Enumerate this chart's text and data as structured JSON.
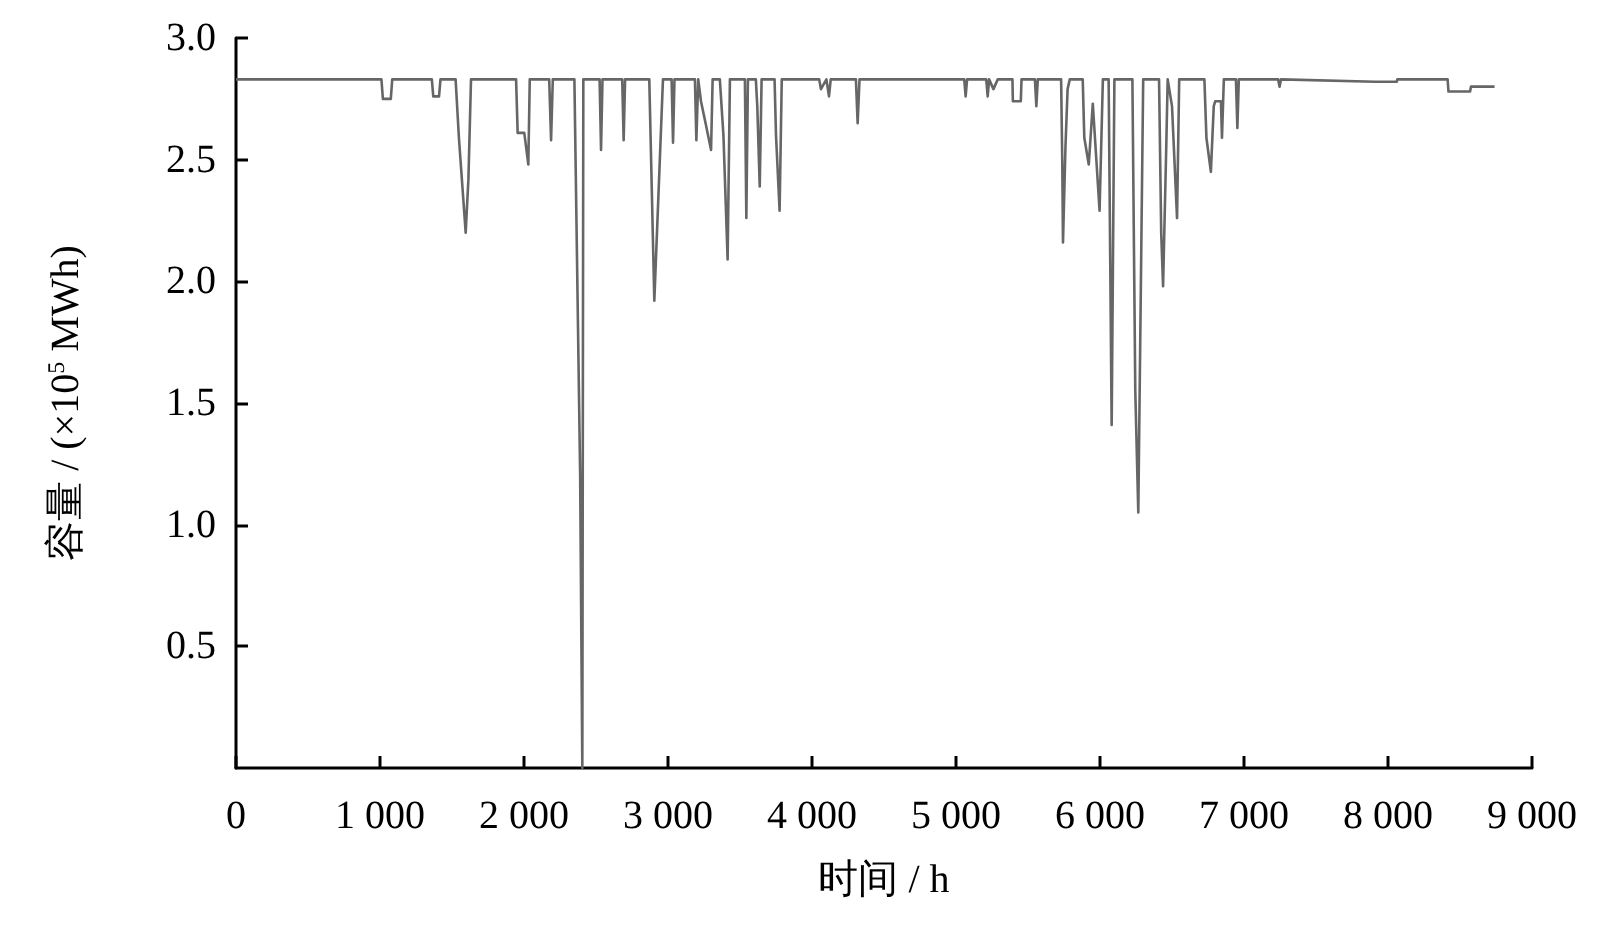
{
  "chart_data": {
    "type": "line",
    "xlabel": "时间 / h",
    "ylabel": "容量 / (×10$^{5}$ MWh)",
    "xlim": [
      0,
      9000
    ],
    "ylim": [
      0,
      3.0
    ],
    "xticks": [
      0,
      {
        "value": 1000,
        "label": "1 000"
      },
      {
        "value": 2000,
        "label": "2 000"
      },
      {
        "value": 3000,
        "label": "3 000"
      },
      {
        "value": 4000,
        "label": "4 000"
      },
      {
        "value": 5000,
        "label": "5 000"
      },
      {
        "value": 6000,
        "label": "6 000"
      },
      {
        "value": 7000,
        "label": "7 000"
      },
      {
        "value": 8000,
        "label": "8 000"
      },
      {
        "value": 9000,
        "label": "9 000"
      }
    ],
    "yticks": [
      {
        "value": 0.5,
        "label": "0.5"
      },
      {
        "value": 1.0,
        "label": "1.0"
      },
      {
        "value": 1.5,
        "label": "1.5"
      },
      {
        "value": 2.0,
        "label": "2.0"
      },
      {
        "value": 2.5,
        "label": "2.5"
      },
      {
        "value": 3.0,
        "label": "3.0"
      }
    ],
    "grid": false,
    "marker": "none",
    "line_style": "solid",
    "series": [
      {
        "color": "#666666",
        "x": [
          0,
          1010,
          1020,
          1075,
          1085,
          1360,
          1370,
          1410,
          1420,
          1525,
          1548,
          1595,
          1614,
          1632,
          1945,
          1956,
          2002,
          2030,
          2040,
          2175,
          2188,
          2200,
          2350,
          2390,
          2405,
          2412,
          2525,
          2535,
          2545,
          2682,
          2692,
          2702,
          2870,
          2905,
          2965,
          3025,
          3035,
          3045,
          3187,
          3197,
          3210,
          3229,
          3261,
          3299,
          3310,
          3360,
          3385,
          3414,
          3430,
          3534,
          3544,
          3555,
          3610,
          3620,
          3637,
          3650,
          3740,
          3750,
          3775,
          3790,
          4050,
          4062,
          4100,
          4118,
          4130,
          4305,
          4317,
          4330,
          5057,
          5067,
          5077,
          5210,
          5220,
          5230,
          5260,
          5290,
          5392,
          5395,
          5450,
          5455,
          5548,
          5558,
          5568,
          5730,
          5738,
          5743,
          5760,
          5775,
          5790,
          5880,
          5891,
          5922,
          5950,
          5997,
          6020,
          6060,
          6081,
          6100,
          6225,
          6245,
          6266,
          6300,
          6410,
          6425,
          6438,
          6460,
          6470,
          6500,
          6535,
          6550,
          6725,
          6739,
          6770,
          6790,
          6800,
          6840,
          6847,
          6860,
          6944,
          6954,
          6964,
          7237,
          7247,
          7257,
          7910,
          8060,
          8065,
          8414,
          8420,
          8570,
          8576,
          8740
        ],
        "values": [
          2.83,
          2.83,
          2.75,
          2.75,
          2.83,
          2.83,
          2.76,
          2.76,
          2.83,
          2.83,
          2.59,
          2.2,
          2.42,
          2.83,
          2.83,
          2.61,
          2.61,
          2.48,
          2.83,
          2.83,
          2.58,
          2.83,
          2.83,
          1.2,
          0,
          2.83,
          2.83,
          2.54,
          2.83,
          2.83,
          2.58,
          2.83,
          2.83,
          1.92,
          2.83,
          2.83,
          2.57,
          2.83,
          2.83,
          2.58,
          2.83,
          2.74,
          2.65,
          2.54,
          2.83,
          2.83,
          2.6,
          2.09,
          2.83,
          2.83,
          2.26,
          2.83,
          2.83,
          2.72,
          2.39,
          2.83,
          2.83,
          2.6,
          2.29,
          2.83,
          2.83,
          2.79,
          2.83,
          2.76,
          2.83,
          2.83,
          2.65,
          2.83,
          2.83,
          2.76,
          2.83,
          2.83,
          2.76,
          2.83,
          2.79,
          2.83,
          2.83,
          2.74,
          2.74,
          2.83,
          2.83,
          2.72,
          2.83,
          2.83,
          2.49,
          2.16,
          2.55,
          2.79,
          2.83,
          2.83,
          2.59,
          2.48,
          2.73,
          2.29,
          2.83,
          2.83,
          1.41,
          2.83,
          2.83,
          1.55,
          1.05,
          2.83,
          2.83,
          2.2,
          1.98,
          2.55,
          2.83,
          2.72,
          2.26,
          2.83,
          2.83,
          2.59,
          2.45,
          2.72,
          2.74,
          2.74,
          2.59,
          2.83,
          2.83,
          2.63,
          2.83,
          2.83,
          2.8,
          2.83,
          2.82,
          2.82,
          2.83,
          2.83,
          2.78,
          2.78,
          2.8,
          2.8
        ]
      }
    ]
  }
}
